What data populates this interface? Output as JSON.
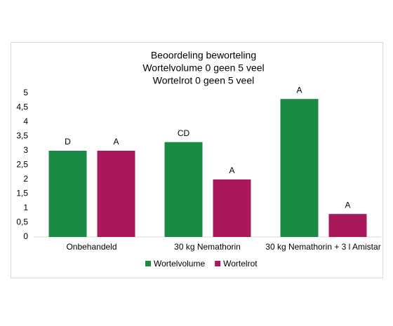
{
  "chart_data": {
    "type": "bar",
    "title": [
      "Beoordeling beworteling",
      "Wortelvolume 0 geen 5 veel",
      "Wortelrot 0 geen 5 veel"
    ],
    "categories": [
      "Onbehandeld",
      "30 kg Nemathorin",
      "30 kg Nemathorin + 3 l Amistar"
    ],
    "series": [
      {
        "name": "Wortelvolume",
        "color": "#1b8a45",
        "values": [
          3,
          3.3,
          4.8
        ],
        "significance": [
          "D",
          "CD",
          "A"
        ]
      },
      {
        "name": "Wortelrot",
        "color": "#a8185a",
        "values": [
          3,
          2,
          0.8
        ],
        "significance": [
          "A",
          "A",
          "A"
        ]
      }
    ],
    "ylim": [
      0,
      5
    ],
    "yticks": [
      0,
      {
        "value": 0.5,
        "label": "0,5"
      },
      1,
      {
        "value": 1.5,
        "label": "1,5"
      },
      2,
      {
        "value": 2.5,
        "label": "2,5"
      },
      3,
      {
        "value": 3.5,
        "label": "3,5"
      },
      4,
      {
        "value": 4.5,
        "label": "4,5"
      },
      5
    ],
    "grid": false,
    "legend": "bottom"
  }
}
